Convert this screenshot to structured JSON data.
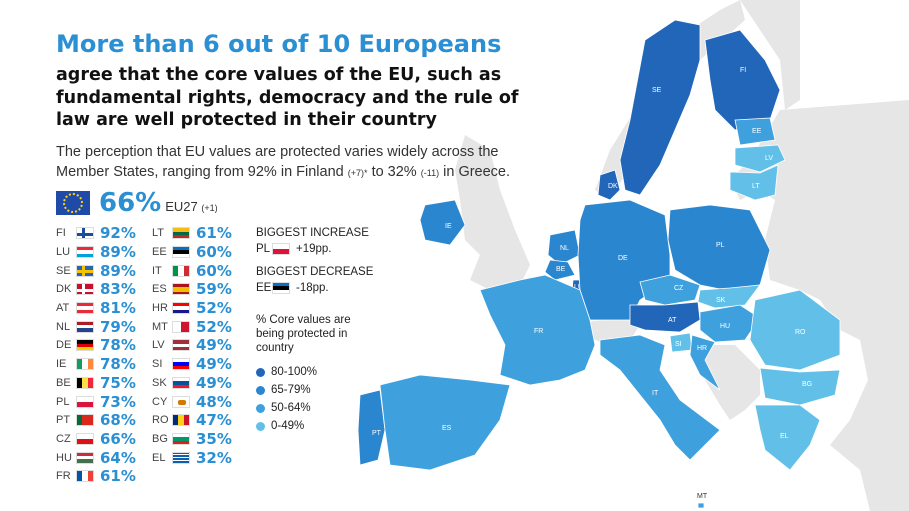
{
  "title": "More than 6 out of 10 Europeans",
  "subtitle": "agree that the core values of the EU, such as fundamental rights, democracy and the rule of law are well protected in their country",
  "description": {
    "text1": "The perception that EU values are protected varies widely across the Member States, ranging from 92% in Finland",
    "sup1": "(+7)*",
    "text2": "to 32%",
    "sup2": "(-11)",
    "text3": "in Greece."
  },
  "eu": {
    "value": "66%",
    "label": "EU27",
    "change": "(+1)"
  },
  "countries_left": [
    {
      "code": "FI",
      "value": "92%",
      "flag": "fi"
    },
    {
      "code": "LU",
      "value": "89%",
      "flag": "lu"
    },
    {
      "code": "SE",
      "value": "89%",
      "flag": "se"
    },
    {
      "code": "DK",
      "value": "83%",
      "flag": "dk"
    },
    {
      "code": "AT",
      "value": "81%",
      "flag": "at"
    },
    {
      "code": "NL",
      "value": "79%",
      "flag": "nl"
    },
    {
      "code": "DE",
      "value": "78%",
      "flag": "de"
    },
    {
      "code": "IE",
      "value": "78%",
      "flag": "ie"
    },
    {
      "code": "BE",
      "value": "75%",
      "flag": "be"
    },
    {
      "code": "PL",
      "value": "73%",
      "flag": "pl"
    },
    {
      "code": "PT",
      "value": "68%",
      "flag": "pt"
    },
    {
      "code": "CZ",
      "value": "66%",
      "flag": "cz"
    },
    {
      "code": "HU",
      "value": "64%",
      "flag": "hu"
    },
    {
      "code": "FR",
      "value": "61%",
      "flag": "fr"
    }
  ],
  "countries_right": [
    {
      "code": "LT",
      "value": "61%",
      "flag": "lt"
    },
    {
      "code": "EE",
      "value": "60%",
      "flag": "ee"
    },
    {
      "code": "IT",
      "value": "60%",
      "flag": "it"
    },
    {
      "code": "ES",
      "value": "59%",
      "flag": "es"
    },
    {
      "code": "HR",
      "value": "52%",
      "flag": "hr"
    },
    {
      "code": "MT",
      "value": "52%",
      "flag": "mt"
    },
    {
      "code": "LV",
      "value": "49%",
      "flag": "lv"
    },
    {
      "code": "SI",
      "value": "49%",
      "flag": "si"
    },
    {
      "code": "SK",
      "value": "49%",
      "flag": "sk"
    },
    {
      "code": "CY",
      "value": "48%",
      "flag": "cy"
    },
    {
      "code": "RO",
      "value": "47%",
      "flag": "ro"
    },
    {
      "code": "BG",
      "value": "35%",
      "flag": "bg"
    },
    {
      "code": "EL",
      "value": "32%",
      "flag": "el"
    }
  ],
  "biggest_increase": {
    "heading": "BIGGEST INCREASE",
    "country": "PL",
    "change": "+19pp.",
    "flag": "pl"
  },
  "biggest_decrease": {
    "heading": "BIGGEST DECREASE",
    "country": "EE",
    "change": "-18pp.",
    "flag": "ee"
  },
  "legend": {
    "title": "% Core values are being protected in country",
    "items": [
      {
        "label": "80-100%",
        "color": "#2166b8"
      },
      {
        "label": "65-79%",
        "color": "#2b86d0"
      },
      {
        "label": "50-64%",
        "color": "#3fa0de"
      },
      {
        "label": "0-49%",
        "color": "#62c0e8"
      }
    ]
  },
  "colors": {
    "band_80_100": "#2166b8",
    "band_65_79": "#2b86d0",
    "band_50_64": "#3fa0de",
    "band_0_49": "#62c0e8",
    "non_member": "#e6e6e6",
    "accent": "#2b8fd3"
  },
  "map_labels": {
    "FI": "FI",
    "SE": "SE",
    "EE": "EE",
    "LV": "LV",
    "LT": "LT",
    "DK": "DK",
    "IE": "IE",
    "NL": "NL",
    "BE": "BE",
    "LU": "LU",
    "DE": "DE",
    "PL": "PL",
    "CZ": "CZ",
    "SK": "SK",
    "AT": "AT",
    "HU": "HU",
    "SI": "SI",
    "HR": "HR",
    "RO": "RO",
    "BG": "BG",
    "FR": "FR",
    "PT": "PT",
    "ES": "ES",
    "IT": "IT",
    "EL": "EL",
    "MT": "MT"
  }
}
